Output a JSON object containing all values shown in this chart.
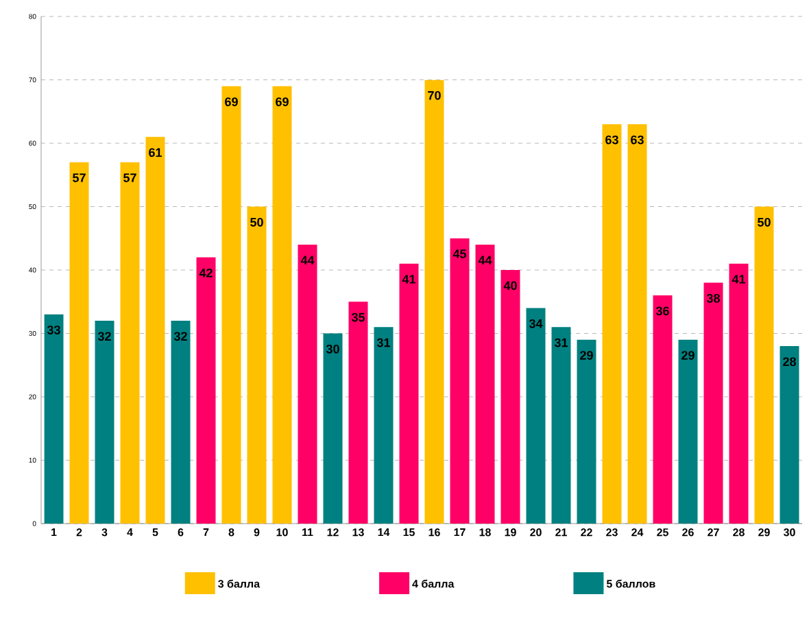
{
  "chart_data": {
    "type": "bar",
    "categories": [
      "1",
      "2",
      "3",
      "4",
      "5",
      "6",
      "7",
      "8",
      "9",
      "10",
      "11",
      "12",
      "13",
      "14",
      "15",
      "16",
      "17",
      "18",
      "19",
      "20",
      "21",
      "22",
      "23",
      "24",
      "25",
      "26",
      "27",
      "28",
      "29",
      "30"
    ],
    "series": [
      {
        "name": "3 балла",
        "color": "#ffc000",
        "values": [
          null,
          57,
          null,
          57,
          61,
          null,
          null,
          69,
          50,
          69,
          null,
          null,
          null,
          null,
          null,
          70,
          null,
          null,
          null,
          null,
          null,
          null,
          63,
          63,
          null,
          null,
          null,
          null,
          50,
          null
        ]
      },
      {
        "name": "4 балла",
        "color": "#ff0066",
        "values": [
          null,
          null,
          null,
          null,
          null,
          null,
          42,
          null,
          null,
          null,
          44,
          null,
          35,
          null,
          41,
          null,
          45,
          44,
          40,
          null,
          null,
          null,
          null,
          null,
          36,
          null,
          38,
          41,
          null,
          null
        ]
      },
      {
        "name": "5 баллов",
        "color": "#008080",
        "values": [
          33,
          null,
          32,
          null,
          null,
          32,
          null,
          null,
          null,
          null,
          null,
          30,
          null,
          31,
          null,
          null,
          null,
          null,
          null,
          34,
          31,
          29,
          null,
          null,
          null,
          29,
          null,
          null,
          null,
          28
        ]
      }
    ],
    "ylim": [
      0,
      80
    ],
    "yticks": [
      0,
      10,
      20,
      30,
      40,
      50,
      60,
      70,
      80
    ],
    "grid": "y",
    "legend": "bottom",
    "data_labels": true
  }
}
